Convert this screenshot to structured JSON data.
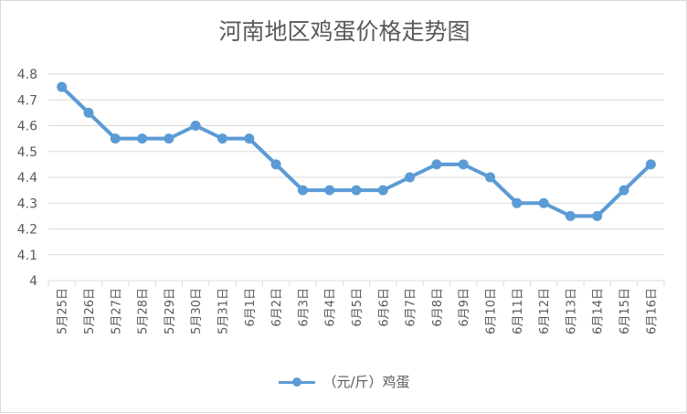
{
  "chart_data": {
    "type": "line",
    "title": "河南地区鸡蛋价格走势图",
    "categories": [
      "5月25日",
      "5月26日",
      "5月27日",
      "5月28日",
      "5月29日",
      "5月30日",
      "5月31日",
      "6月1日",
      "6月2日",
      "6月3日",
      "6月4日",
      "6月5日",
      "6月6日",
      "6月7日",
      "6月8日",
      "6月9日",
      "6月10日",
      "6月11日",
      "6月12日",
      "6月13日",
      "6月14日",
      "6月15日",
      "6月16日"
    ],
    "series": [
      {
        "name": "（元/斤）鸡蛋",
        "values": [
          4.75,
          4.65,
          4.55,
          4.55,
          4.55,
          4.6,
          4.55,
          4.55,
          4.45,
          4.35,
          4.35,
          4.35,
          4.35,
          4.4,
          4.45,
          4.45,
          4.4,
          4.3,
          4.3,
          4.25,
          4.25,
          4.35,
          4.45
        ]
      }
    ],
    "yticks": [
      "4",
      "4.1",
      "4.2",
      "4.3",
      "4.4",
      "4.5",
      "4.6",
      "4.7",
      "4.8"
    ],
    "ylim": [
      4,
      4.8
    ],
    "xlabel": "",
    "ylabel": "",
    "grid": true,
    "legend": "bottom",
    "color": "#5b9bd5"
  }
}
